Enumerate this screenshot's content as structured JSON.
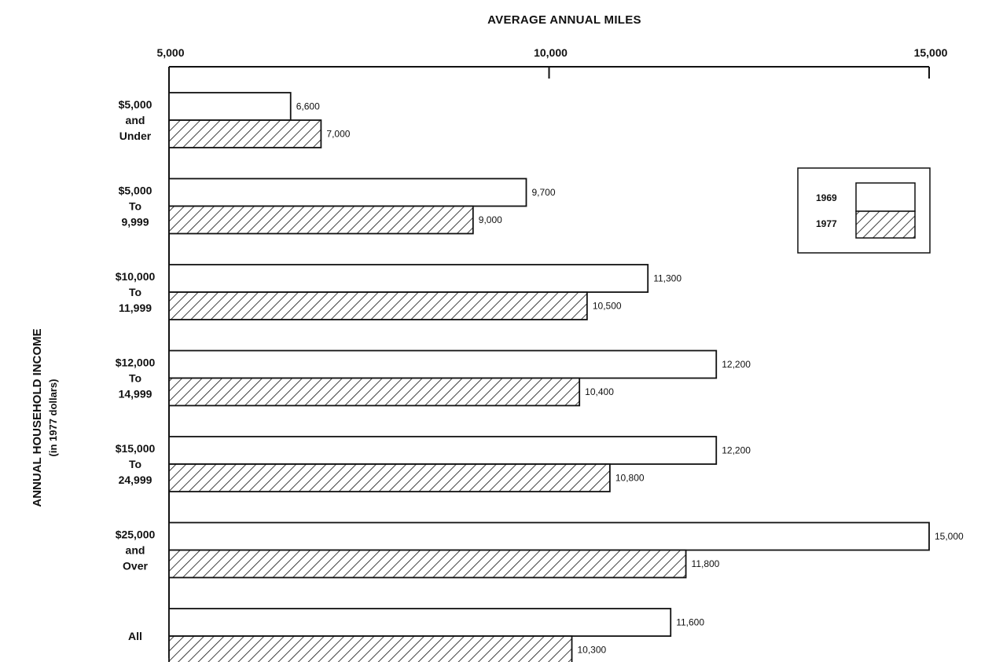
{
  "chart_data": {
    "type": "bar",
    "orientation": "horizontal",
    "title": "AVERAGE ANNUAL MILES",
    "ylabel": "ANNUAL HOUSEHOLD INCOME",
    "ylabel_sub": "(in 1977 dollars)",
    "xlim": [
      5000,
      15000
    ],
    "x_ticks": [
      5000,
      10000,
      15000
    ],
    "x_tick_labels": [
      "5,000",
      "10,000",
      "15,000"
    ],
    "categories": [
      [
        "$5,000",
        "and",
        "Under"
      ],
      [
        "$5,000",
        "To",
        "9,999"
      ],
      [
        "$10,000",
        "To",
        "11,999"
      ],
      [
        "$12,000",
        "To",
        "14,999"
      ],
      [
        "$15,000",
        "To",
        "24,999"
      ],
      [
        "$25,000",
        "and",
        "Over"
      ],
      [
        "All"
      ]
    ],
    "series": [
      {
        "name": "1969",
        "pattern": "solid",
        "values": [
          6600,
          9700,
          11300,
          12200,
          12200,
          15000,
          11600
        ],
        "labels": [
          "6,600",
          "9,700",
          "11,300",
          "12,200",
          "12,200",
          "15,000",
          "11,600"
        ]
      },
      {
        "name": "1977",
        "pattern": "hatched",
        "values": [
          7000,
          9000,
          10500,
          10400,
          10800,
          11800,
          10300
        ],
        "labels": [
          "7,000",
          "9,000",
          "10,500",
          "10,400",
          "10,800",
          "11,800",
          "10,300"
        ]
      }
    ],
    "grid": false,
    "legend_position": "right"
  },
  "colors": {
    "ink": "#111111",
    "fill": "#ffffff"
  }
}
